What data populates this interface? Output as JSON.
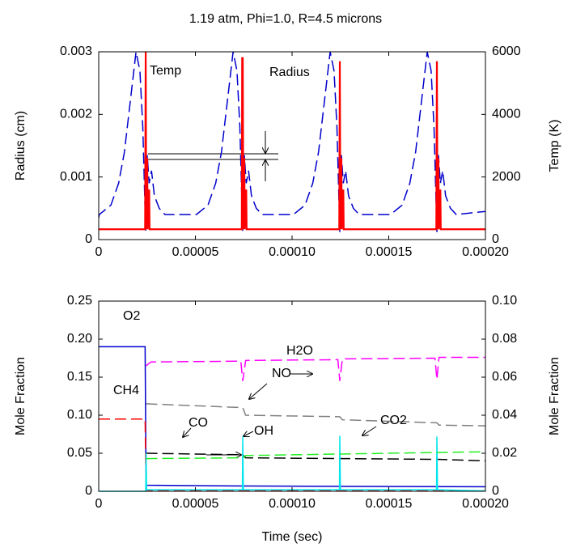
{
  "chart_data": [
    {
      "type": "line",
      "title": "1.19 atm, Phi=1.0, R=4.5 microns",
      "ylabel": "Radius (cm)",
      "y2label": "Temp (K)",
      "xlim": [
        0,
        0.0002
      ],
      "xticks": [
        0,
        5e-05,
        {
          "value": 0.0001,
          "label": "0.00010"
        },
        0.00015,
        {
          "value": 0.0002,
          "label": "0.00020"
        }
      ],
      "ylim": [
        0,
        0.003
      ],
      "yticks": [
        0,
        0.001,
        0.002,
        0.003
      ],
      "y2lim": [
        0,
        6000
      ],
      "y2ticks": [
        0,
        2000,
        4000,
        6000
      ],
      "series": [
        {
          "name": "Radius",
          "color": "#0000cc",
          "style": "dashed",
          "axis": "y",
          "x": [
            0,
            3e-07,
            6.3e-06,
            1.03e-05,
            1.33e-05,
            1.63e-05,
            1.93e-05,
            2.13e-05,
            2.28e-05,
            2.43e-05,
            2.51e-05,
            2.61e-05,
            2.73e-05,
            2.88e-05,
            3.13e-05,
            3.43e-05,
            5.05e-05,
            5.65e-05,
            6.05e-05,
            6.35e-05,
            6.65e-05,
            6.95e-05,
            7.15e-05,
            7.3e-05,
            7.45e-05,
            7.53e-05,
            7.63e-05,
            7.75e-05,
            7.9e-05,
            8.15e-05,
            8.45e-05,
            0.0001007,
            0.0001067,
            0.0001107,
            0.0001137,
            0.0001167,
            0.0001197,
            0.0001217,
            0.0001232,
            0.0001247,
            0.0001255,
            0.0001265,
            0.0001277,
            0.0001292,
            0.0001317,
            0.0001347,
            0.0001509,
            0.0001569,
            0.0001609,
            0.0001639,
            0.0001669,
            0.0001699,
            0.0001719,
            0.0001734,
            0.0001749,
            0.0001757,
            0.0001767,
            0.0001779,
            0.0001794,
            0.0001819,
            0.0001849,
            0.0002
          ],
          "values": [
            0.00035,
            0.0004,
            0.00055,
            0.0009,
            0.0014,
            0.0022,
            0.003,
            0.0027,
            0.0018,
            0.00012,
            0.00135,
            0.0009,
            0.0011,
            0.0007,
            0.0005,
            0.0004,
            0.0004,
            0.00055,
            0.0009,
            0.0014,
            0.0022,
            0.003,
            0.0027,
            0.0018,
            0.00012,
            0.00135,
            0.0009,
            0.0011,
            0.0007,
            0.0005,
            0.0004,
            0.0004,
            0.00055,
            0.0009,
            0.0014,
            0.0022,
            0.003,
            0.0027,
            0.0018,
            0.00012,
            0.00135,
            0.0009,
            0.0011,
            0.0007,
            0.0005,
            0.0004,
            0.0004,
            0.00055,
            0.0009,
            0.0014,
            0.0022,
            0.003,
            0.0027,
            0.0018,
            0.00012,
            0.00135,
            0.0009,
            0.0011,
            0.0007,
            0.0005,
            0.0004,
            0.00045
          ]
        },
        {
          "name": "Temp",
          "color": "#ff0000",
          "style": "solid",
          "axis": "y2",
          "x": [
            0,
            2.4e-05,
            2.43e-05,
            2.46e-05,
            2.51e-05,
            2.53e-05,
            2.61e-05,
            2.63e-05,
            7.4e-05,
            7.42e-05,
            7.45e-05,
            7.48e-05,
            7.53e-05,
            7.55e-05,
            7.63e-05,
            7.65e-05,
            0.0001244,
            0.0001247,
            0.000125,
            0.0001255,
            0.0001257,
            0.0001265,
            0.0001267,
            0.0001746,
            0.0001749,
            0.0001752,
            0.0001757,
            0.0001759,
            0.0001767,
            0.0001769,
            0.0002
          ],
          "values": [
            330,
            330,
            6000,
            330,
            2600,
            330,
            1600,
            330,
            330,
            5800,
            5800,
            330,
            2600,
            330,
            1600,
            330,
            330,
            5700,
            330,
            2600,
            330,
            1600,
            330,
            330,
            5700,
            330,
            2600,
            330,
            1600,
            330,
            330
          ]
        }
      ]
    },
    {
      "type": "line",
      "xlabel": "Time (sec)",
      "ylabel": "Mole Fraction",
      "y2label": "Mole Fraction",
      "xlim": [
        0,
        0.0002
      ],
      "xticks": [
        0,
        5e-05,
        {
          "value": 0.0001,
          "label": "0.00010"
        },
        0.00015,
        {
          "value": 0.0002,
          "label": "0.00020"
        }
      ],
      "ylim": [
        0,
        0.25
      ],
      "yticks": [
        0,
        0.05,
        {
          "value": 0.1,
          "label": "0.10"
        },
        0.15,
        {
          "value": 0.2,
          "label": "0.20"
        },
        0.25
      ],
      "y2lim": [
        0,
        0.1
      ],
      "y2ticks": [
        0,
        0.02,
        0.04,
        0.06,
        0.08,
        {
          "value": 0.1,
          "label": "0.10"
        }
      ],
      "series": [
        {
          "name": "O2",
          "color": "#0000cc",
          "style": "solid",
          "axis": "y",
          "x": [
            0,
            2.4e-05,
            2.45e-05,
            7e-05,
            0.0002
          ],
          "values": [
            0.19,
            0.19,
            0.008,
            0.007,
            0.006
          ]
        },
        {
          "name": "H2O",
          "color": "#ff00ff",
          "style": "dashed",
          "axis": "y",
          "x": [
            2.45e-05,
            2.7e-05,
            7.35e-05,
            7.45e-05,
            7.6e-05,
            0.0001237,
            0.0001247,
            0.000126,
            0.0001739,
            0.0001749,
            0.000176,
            0.0002
          ],
          "values": [
            0.165,
            0.17,
            0.171,
            0.145,
            0.172,
            0.173,
            0.145,
            0.174,
            0.175,
            0.147,
            0.176,
            0.176
          ]
        },
        {
          "name": "CH4",
          "color": "#ff0000",
          "style": "dashed",
          "axis": "y",
          "x": [
            0,
            2.4e-05,
            2.45e-05,
            0.0002
          ],
          "values": [
            0.095,
            0.095,
            0.001,
            0.0005
          ]
        },
        {
          "name": "NO",
          "color": "#808080",
          "style": "dashed",
          "axis": "y",
          "x": [
            2.45e-05,
            7.45e-05,
            7.6e-05,
            0.0001247,
            0.000126,
            0.0001749,
            0.000176,
            0.0002
          ],
          "values": [
            0.115,
            0.11,
            0.1,
            0.098,
            0.094,
            0.09,
            0.087,
            0.086
          ]
        },
        {
          "name": "CO",
          "color": "#000000",
          "style": "dashed",
          "axis": "y",
          "x": [
            2.45e-05,
            7.45e-05,
            7.6e-05,
            0.0001247,
            0.0001749,
            0.0002
          ],
          "values": [
            0.05,
            0.048,
            0.044,
            0.043,
            0.042,
            0.04
          ]
        },
        {
          "name": "OH",
          "color": "#00e5ee",
          "style": "solid",
          "axis": "y",
          "x": [
            0,
            2.43e-05,
            2.45e-05,
            2.48e-05,
            7.43e-05,
            7.45e-05,
            7.48e-05,
            0.0001245,
            0.0001247,
            0.000125,
            0.0001747,
            0.0001749,
            0.0001752,
            0.0002
          ],
          "values": [
            0,
            0,
            0.05,
            0.002,
            0.002,
            0.072,
            0.002,
            0.002,
            0.073,
            0.002,
            0.002,
            0.072,
            0.002,
            0.0005
          ]
        },
        {
          "name": "CO2",
          "color": "#22ee22",
          "style": "dashed",
          "axis": "y",
          "x": [
            2.45e-05,
            7.45e-05,
            7.6e-05,
            0.0001247,
            0.0001749,
            0.0002
          ],
          "values": [
            0.043,
            0.044,
            0.047,
            0.049,
            0.051,
            0.052
          ]
        }
      ]
    }
  ]
}
